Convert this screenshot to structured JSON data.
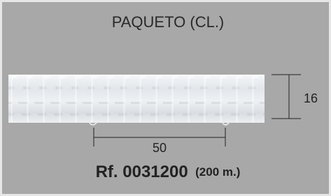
{
  "header": {
    "title": "PAQUETO (CL.)"
  },
  "dimensions": {
    "height": "16",
    "spacing": "50"
  },
  "reference": {
    "code": "Rf. 0031200",
    "length": "(200 m.)"
  }
}
